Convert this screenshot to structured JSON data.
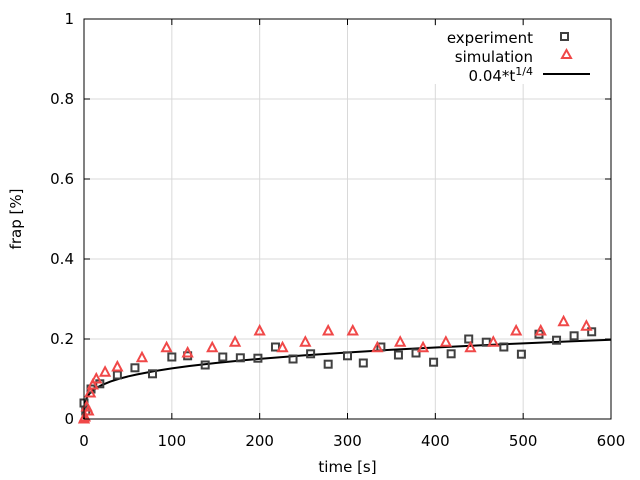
{
  "chart_data": {
    "type": "scatter",
    "xlabel": "time [s]",
    "ylabel": "frap [%]",
    "xlim": [
      0,
      600
    ],
    "ylim": [
      0,
      1
    ],
    "x_ticks": [
      "0",
      "100",
      "200",
      "300",
      "400",
      "500",
      "600"
    ],
    "y_ticks": [
      "0",
      "0.2",
      "0.4",
      "0.6",
      "0.8",
      "1"
    ],
    "grid": true,
    "legend_position": "top-right",
    "series": [
      {
        "name": "experiment",
        "marker": "square",
        "color": "#404040",
        "x": [
          0,
          2,
          8,
          18,
          38,
          58,
          78,
          100,
          118,
          138,
          158,
          178,
          198,
          218,
          238,
          258,
          278,
          300,
          318,
          338,
          358,
          378,
          398,
          418,
          438,
          458,
          478,
          498,
          518,
          538,
          558,
          578
        ],
        "y": [
          0.04,
          0.02,
          0.075,
          0.088,
          0.11,
          0.128,
          0.113,
          0.155,
          0.158,
          0.135,
          0.155,
          0.153,
          0.152,
          0.18,
          0.15,
          0.163,
          0.137,
          0.158,
          0.14,
          0.18,
          0.16,
          0.165,
          0.142,
          0.163,
          0.2,
          0.192,
          0.18,
          0.162,
          0.212,
          0.197,
          0.208,
          0.218
        ]
      },
      {
        "name": "simulation",
        "marker": "triangle",
        "color": "#f04848",
        "x": [
          0,
          1,
          3,
          5,
          7,
          10,
          14,
          24,
          38,
          66,
          94,
          118,
          146,
          172,
          200,
          226,
          252,
          278,
          306,
          334,
          360,
          386,
          412,
          440,
          466,
          492,
          520,
          546,
          572
        ],
        "y": [
          0,
          0.005,
          0.03,
          0.02,
          0.065,
          0.085,
          0.1,
          0.117,
          0.13,
          0.153,
          0.178,
          0.165,
          0.178,
          0.192,
          0.22,
          0.178,
          0.192,
          0.22,
          0.22,
          0.178,
          0.192,
          0.178,
          0.192,
          0.178,
          0.192,
          0.22,
          0.22,
          0.243,
          0.232
        ]
      },
      {
        "name": "0.04*t^{1/4}",
        "legend_label_main": "0.04*t",
        "legend_label_sup": "1/4",
        "type": "line",
        "color": "#000000",
        "formula": "0.04*t^(1/4)",
        "x": [
          0,
          0.5,
          1,
          2,
          4,
          6,
          10,
          15,
          20,
          30,
          40,
          50,
          60,
          80,
          100,
          120,
          150,
          180,
          200,
          250,
          300,
          350,
          400,
          450,
          500,
          550,
          600
        ],
        "y": [
          0,
          0.0336,
          0.04,
          0.0476,
          0.0566,
          0.0626,
          0.0711,
          0.0787,
          0.0846,
          0.0936,
          0.1006,
          0.1064,
          0.1113,
          0.1196,
          0.1265,
          0.1324,
          0.14,
          0.1465,
          0.1504,
          0.159,
          0.1664,
          0.173,
          0.1789,
          0.1842,
          0.1891,
          0.1937,
          0.198
        ]
      }
    ]
  }
}
